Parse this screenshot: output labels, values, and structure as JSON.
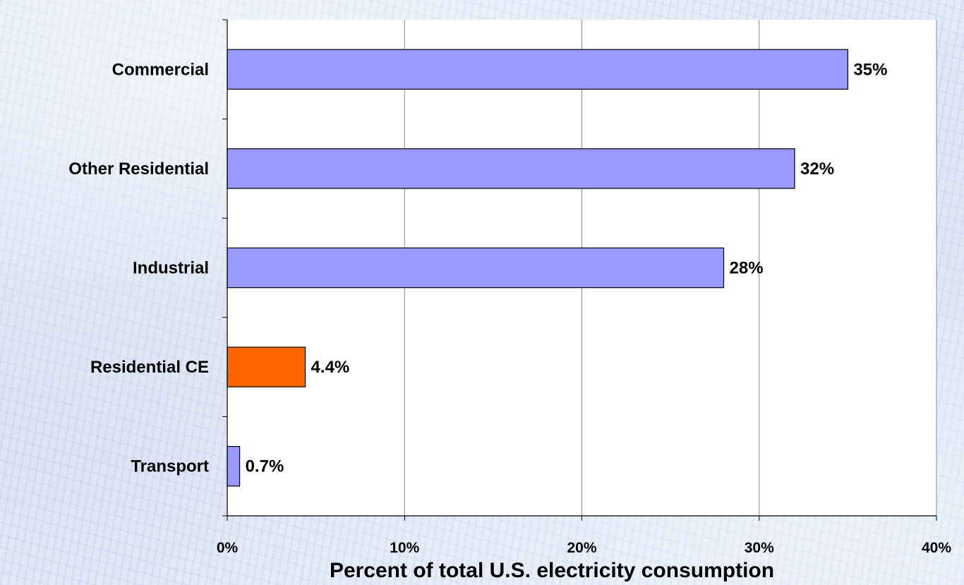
{
  "chart_data": {
    "type": "bar",
    "orientation": "horizontal",
    "categories": [
      "Commercial",
      "Other Residential",
      "Industrial",
      "Residential CE",
      "Transport"
    ],
    "values": [
      35,
      32,
      28,
      4.4,
      0.7
    ],
    "value_labels": [
      "35%",
      "32%",
      "28%",
      "4.4%",
      "0.7%"
    ],
    "bar_colors": [
      "#9999ff",
      "#9999ff",
      "#9999ff",
      "#ff6600",
      "#9999ff"
    ],
    "highlight_category": "Residential CE",
    "xlim": [
      0,
      40
    ],
    "xticks": [
      0,
      10,
      20,
      30,
      40
    ],
    "xtick_labels": [
      "0%",
      "10%",
      "20%",
      "30%",
      "40%"
    ],
    "xlabel": "Percent of total U.S. electricity consumption",
    "ylabel": "",
    "title": "",
    "grid": "vertical",
    "legend": "none"
  }
}
